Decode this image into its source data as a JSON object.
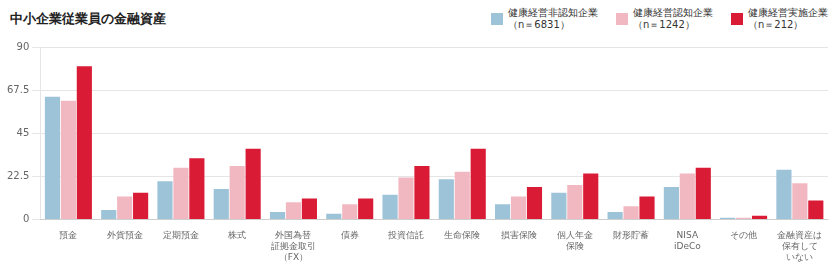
{
  "chart_data": {
    "type": "bar",
    "title": "中小企業従業員の金融資産",
    "categories": [
      "預金",
      "外貨預金",
      "定期預金",
      "株式",
      "外国為替\n証拠金取引\n（FX）",
      "債券",
      "投資信託",
      "生命保険",
      "損害保険",
      "個人年金\n保険",
      "財形貯蓄",
      "NISA\niDeCo",
      "その他",
      "金融資産は\n保有して\nいない"
    ],
    "series": [
      {
        "name": "健康経営非認知企業\n（n＝6831）",
        "color": "#9dc3d8",
        "values": [
          64,
          5,
          20,
          16,
          4,
          3,
          13,
          21,
          8,
          14,
          4,
          17,
          1,
          26
        ]
      },
      {
        "name": "健康経営認知企業\n（n＝1242）",
        "color": "#f2b8c2",
        "values": [
          62,
          12,
          27,
          28,
          9,
          8,
          22,
          25,
          12,
          18,
          7,
          24,
          1,
          19
        ]
      },
      {
        "name": "健康経営実施企業\n（n＝212）",
        "color": "#d91b36",
        "values": [
          80,
          14,
          32,
          37,
          11,
          11,
          28,
          37,
          17,
          24,
          12,
          27,
          2,
          10
        ]
      }
    ],
    "ylim": [
      0,
      90
    ],
    "yticks": [
      0,
      22.5,
      45,
      67.5,
      90
    ],
    "grid": true,
    "legend": "upper right"
  }
}
